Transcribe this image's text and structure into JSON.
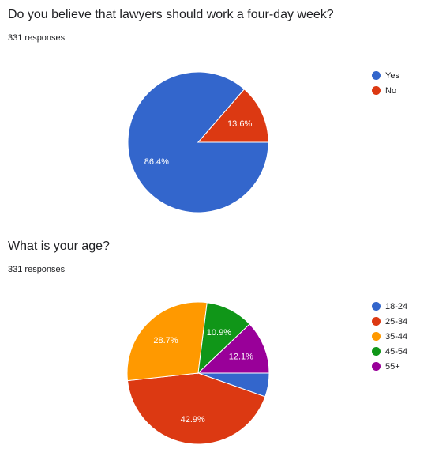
{
  "q1": {
    "title": "Do you believe that lawyers should work a four-day week?",
    "responses": "331 responses"
  },
  "q2": {
    "title": "What is your age?",
    "responses": "331 responses"
  },
  "chart_data": [
    {
      "type": "pie",
      "categories": [
        "Yes",
        "No"
      ],
      "values": [
        86.4,
        13.6
      ],
      "value_labels": [
        "86.4%",
        "13.6%"
      ],
      "colors": [
        "#3366cc",
        "#dc3912"
      ],
      "legend_position": "right"
    },
    {
      "type": "pie",
      "categories": [
        "18-24",
        "25-34",
        "35-44",
        "45-54",
        "55+"
      ],
      "values": [
        5.4,
        42.9,
        28.7,
        10.9,
        12.1
      ],
      "value_labels": [
        "",
        "42.9%",
        "28.7%",
        "10.9%",
        "12.1%"
      ],
      "colors": [
        "#3366cc",
        "#dc3912",
        "#ff9900",
        "#109618",
        "#990099"
      ],
      "legend_position": "right"
    }
  ]
}
